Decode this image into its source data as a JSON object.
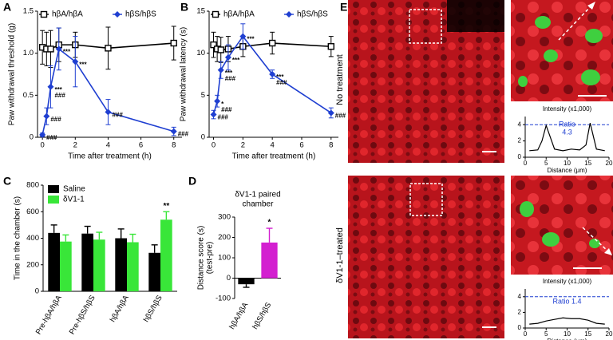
{
  "chart_data": [
    {
      "type": "line",
      "panel": "A",
      "ylabel": [
        "Paw withdrawal threshold (g)"
      ],
      "xlabel": "Time after treatment (h)",
      "xlim": [
        -0.3,
        8.5
      ],
      "xticks": [
        0,
        2,
        4,
        6,
        8
      ],
      "ylim": [
        0,
        1.5
      ],
      "yticks": [
        0,
        0.5,
        {
          "value": 1,
          "label": "1.0"
        },
        1.5
      ],
      "x": [
        0,
        0.25,
        0.5,
        1,
        2,
        4,
        8
      ],
      "series": [
        {
          "name": "hβA/hβA",
          "color": "#000000",
          "marker": "square",
          "values": [
            1.07,
            1.05,
            1.05,
            1.1,
            1.1,
            1.06,
            1.12
          ],
          "errors": [
            0.2,
            0.2,
            0.22,
            0.2,
            0.15,
            0.25,
            0.2
          ],
          "annotations": [
            [],
            [],
            [],
            [],
            [],
            [],
            []
          ]
        },
        {
          "name": "hβS/hβS",
          "color": "#1f3fd1",
          "marker": "diamond",
          "values": [
            0.03,
            0.25,
            0.6,
            1.05,
            0.9,
            0.3,
            0.07
          ],
          "errors": [
            0.02,
            0.1,
            0.25,
            0.25,
            0.3,
            0.15,
            0.05
          ],
          "annotations": [
            [
              "###"
            ],
            [
              "###"
            ],
            [
              "***",
              "###"
            ],
            [
              "***"
            ],
            [
              "***"
            ],
            [
              "###"
            ],
            [
              "###"
            ]
          ]
        }
      ]
    },
    {
      "type": "line",
      "panel": "B",
      "ylabel": [
        "Paw withdrawal latency (s)"
      ],
      "xlabel": "Time after treatment (h)",
      "xlim": [
        -0.3,
        8.5
      ],
      "xticks": [
        0,
        2,
        4,
        6,
        8
      ],
      "ylim": [
        0,
        15
      ],
      "yticks": [
        0,
        5,
        10,
        15
      ],
      "x": [
        0,
        0.25,
        0.5,
        1,
        2,
        4,
        8
      ],
      "series": [
        {
          "name": "hβA/hβA",
          "color": "#000000",
          "marker": "square",
          "values": [
            11,
            10.5,
            10.4,
            10.5,
            10.8,
            11.2,
            10.8
          ],
          "errors": [
            1.5,
            1.5,
            1.5,
            1.5,
            1.2,
            1.3,
            1.2
          ],
          "annotations": [
            [],
            [],
            [],
            [],
            [],
            [],
            []
          ]
        },
        {
          "name": "hβS/hβS",
          "color": "#1f3fd1",
          "marker": "diamond",
          "values": [
            2.7,
            4.3,
            8,
            9.5,
            12,
            7.5,
            2.9
          ],
          "errors": [
            0.5,
            0.7,
            1,
            1.5,
            1.5,
            0.5,
            0.6
          ],
          "annotations": [
            [
              "###"
            ],
            [
              "*",
              "###"
            ],
            [
              "***",
              "###"
            ],
            [
              "***"
            ],
            [
              "***"
            ],
            [
              "***",
              "###"
            ],
            [
              "###"
            ]
          ]
        }
      ]
    },
    {
      "type": "bar",
      "panel": "C",
      "ylabel": [
        "Time in the chamber (s)"
      ],
      "xtick_rotation": -60,
      "categories": [
        "Pre-hβA/hβA",
        "Pre-hβS/hβS",
        "hβA/hβA",
        "hβS/hβS"
      ],
      "ylim": [
        0,
        800
      ],
      "yticks": [
        0,
        200,
        400,
        600,
        800
      ],
      "series": [
        {
          "name": "Saline",
          "color": "#000000",
          "values": [
            440,
            435,
            400,
            290
          ],
          "errors": [
            60,
            55,
            70,
            60
          ],
          "annotations": [
            null,
            null,
            null,
            null
          ]
        },
        {
          "name": "δV1-1",
          "color": "#39e639",
          "values": [
            375,
            390,
            370,
            540
          ],
          "errors": [
            50,
            55,
            60,
            60
          ],
          "annotations": [
            null,
            null,
            null,
            "**"
          ]
        }
      ]
    },
    {
      "type": "bar",
      "panel": "D",
      "title": [
        "δV1-1 paired",
        "chamber"
      ],
      "ylabel": [
        "Distance score (s)",
        "(test-pre)"
      ],
      "xtick_rotation": -60,
      "categories": [
        "hβA/hβA",
        "hβS/hβS"
      ],
      "ylim": [
        -100,
        300
      ],
      "yticks": [
        -100,
        0,
        100,
        200,
        300
      ],
      "series": [
        {
          "colors": [
            "#000000",
            "#d31fd0"
          ],
          "values": [
            -30,
            175
          ],
          "errors": [
            15,
            70
          ],
          "annotations": [
            null,
            "*"
          ]
        }
      ]
    },
    {
      "type": "line",
      "panel": "E",
      "row_label": "No treatment",
      "title": [
        "Intensity (x1,000)"
      ],
      "xlabel": "Distance (μm)",
      "ratio": [
        "Ratio",
        "4.3"
      ],
      "xlim": [
        0,
        20
      ],
      "xticks": [
        0,
        5,
        10,
        15,
        20
      ],
      "ylim": [
        0,
        5
      ],
      "yticks": [
        0,
        2,
        4
      ],
      "x": [
        1,
        3,
        4,
        5,
        7,
        9,
        11,
        13,
        14.5,
        15.5,
        17,
        19
      ],
      "series": [
        {
          "color": "#000000",
          "values": [
            0.8,
            0.9,
            2,
            3.9,
            1.0,
            0.8,
            1.0,
            0.9,
            1.5,
            4.2,
            1.0,
            0.8
          ]
        }
      ]
    },
    {
      "type": "line",
      "row_label": "δV1-1–treated",
      "title": [
        "Intensity (x1,000)"
      ],
      "xlabel": "Distance (μm)",
      "ratio": [
        "Ratio 1.4"
      ],
      "xlim": [
        0,
        20
      ],
      "xticks": [
        0,
        5,
        10,
        15,
        20
      ],
      "ylim": [
        0,
        5
      ],
      "yticks": [
        0,
        2,
        4
      ],
      "x": [
        1,
        3,
        5,
        7,
        9,
        11,
        13,
        15,
        17,
        19
      ],
      "series": [
        {
          "color": "#000000",
          "values": [
            0.5,
            0.6,
            0.9,
            1.1,
            1.3,
            1.2,
            1.2,
            1.0,
            0.6,
            0.5
          ]
        }
      ]
    }
  ]
}
